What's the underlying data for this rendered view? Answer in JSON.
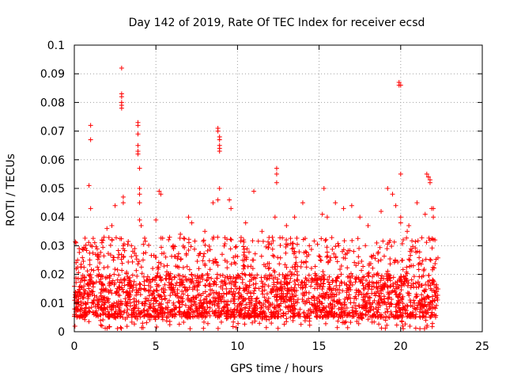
{
  "chart_data": {
    "type": "scatter",
    "title": "Day 142 of 2019, Rate Of TEC Index for receiver ecsd",
    "xlabel": "GPS time / hours",
    "ylabel": "ROTI / TECUs",
    "xlim": [
      0,
      25
    ],
    "ylim": [
      0,
      0.1
    ],
    "x_ticks": [
      "0",
      "5",
      "10",
      "15",
      "20",
      "25"
    ],
    "y_ticks": [
      "0",
      "0.01",
      "0.02",
      "0.03",
      "0.04",
      "0.05",
      "0.06",
      "0.07",
      "0.08",
      "0.09",
      "0.1"
    ],
    "grid": true,
    "marker": "+",
    "color": "#ff0000",
    "x_data_range": [
      0,
      22.3
    ],
    "typical_band": [
      0.005,
      0.02
    ],
    "series": [
      {
        "x": [
          0.05,
          0.1,
          0.15,
          0.2,
          0.3,
          1.0,
          1.0,
          0.9,
          1.0,
          1.5,
          2.0,
          2.3,
          2.4,
          2.5,
          2.9,
          2.9,
          2.9,
          2.9,
          2.9,
          2.9,
          3.0,
          3.0,
          3.0,
          3.0,
          3.5,
          3.7,
          3.9,
          3.9,
          3.9,
          3.9,
          3.9,
          3.9,
          4.0,
          4.0,
          4.0,
          4.0,
          4.0,
          4.1,
          5.0,
          5.2,
          5.3,
          6.5,
          7.0,
          7.2,
          8.0,
          8.5,
          8.8,
          8.8,
          8.8,
          8.9,
          8.9,
          8.9,
          8.9,
          8.9,
          8.9,
          9.5,
          9.6,
          10.5,
          11.0,
          11.5,
          12.3,
          12.4,
          12.4,
          12.4,
          13.0,
          13.5,
          14.0,
          14.4,
          15.2,
          15.3,
          15.5,
          16.0,
          16.5,
          17.0,
          17.5,
          18.0,
          18.8,
          19.2,
          19.5,
          19.7,
          19.9,
          19.9,
          20.0,
          20.0,
          20.0,
          20.0,
          20.4,
          20.5,
          21.0,
          21.5,
          21.6,
          21.7,
          21.8,
          21.8,
          21.9,
          22.0,
          22.0,
          22.1,
          22.2
        ],
        "y": [
          0.012,
          0.031,
          0.008,
          0.025,
          0.029,
          0.072,
          0.067,
          0.051,
          0.043,
          0.026,
          0.036,
          0.037,
          0.025,
          0.044,
          0.092,
          0.083,
          0.082,
          0.08,
          0.079,
          0.078,
          0.047,
          0.045,
          0.029,
          0.03,
          0.03,
          0.029,
          0.073,
          0.072,
          0.069,
          0.065,
          0.063,
          0.062,
          0.057,
          0.05,
          0.048,
          0.045,
          0.039,
          0.037,
          0.039,
          0.049,
          0.048,
          0.034,
          0.04,
          0.038,
          0.035,
          0.045,
          0.046,
          0.071,
          0.07,
          0.068,
          0.067,
          0.065,
          0.064,
          0.063,
          0.05,
          0.046,
          0.043,
          0.038,
          0.049,
          0.035,
          0.04,
          0.057,
          0.055,
          0.052,
          0.037,
          0.04,
          0.045,
          0.03,
          0.041,
          0.05,
          0.04,
          0.045,
          0.043,
          0.044,
          0.04,
          0.037,
          0.042,
          0.05,
          0.048,
          0.044,
          0.087,
          0.086,
          0.086,
          0.055,
          0.04,
          0.038,
          0.035,
          0.037,
          0.045,
          0.041,
          0.055,
          0.054,
          0.053,
          0.052,
          0.043,
          0.043,
          0.04,
          0.032,
          0.014
        ]
      }
    ]
  }
}
